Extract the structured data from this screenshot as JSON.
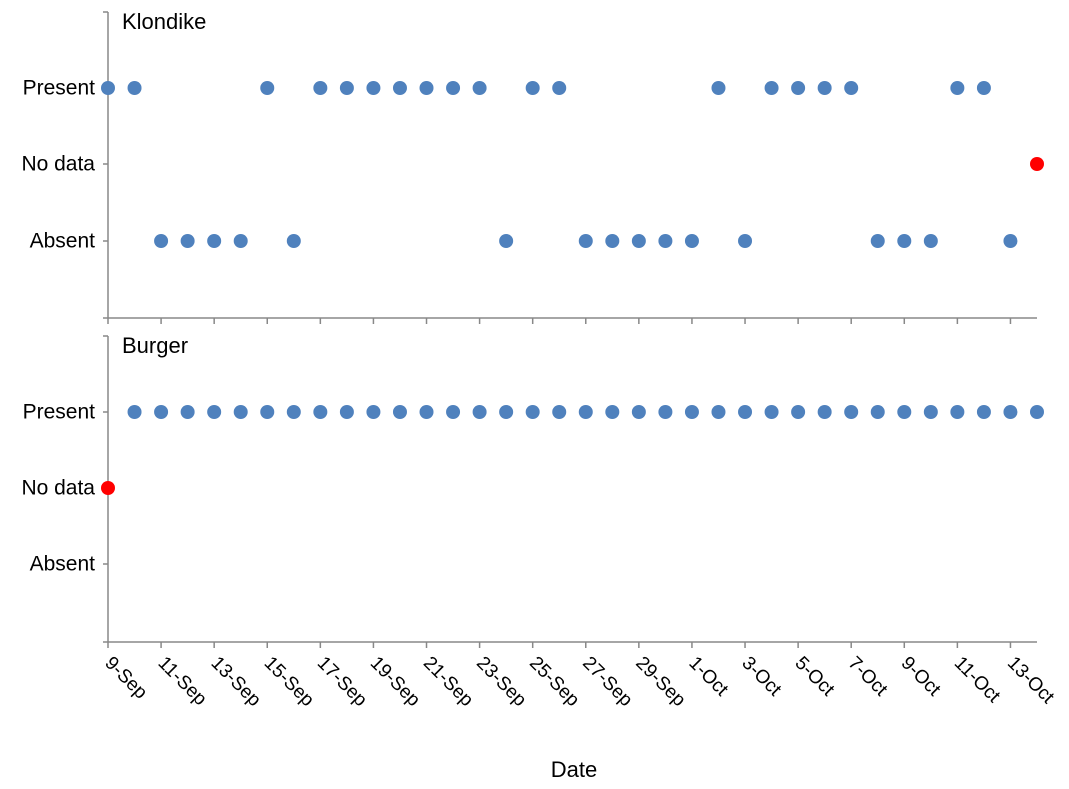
{
  "chart_data": {
    "type": "scatter",
    "xlabel": "Date",
    "x_ticks": [
      "9-Sep",
      "11-Sep",
      "13-Sep",
      "15-Sep",
      "17-Sep",
      "19-Sep",
      "21-Sep",
      "23-Sep",
      "25-Sep",
      "27-Sep",
      "29-Sep",
      "1-Oct",
      "3-Oct",
      "5-Oct",
      "7-Oct",
      "9-Oct",
      "11-Oct",
      "13-Oct"
    ],
    "x_range": [
      "2023-09-09",
      "2023-10-14"
    ],
    "y_categories": [
      "Present",
      "No data",
      "Absent"
    ],
    "colors": {
      "observed": "#4F81BD",
      "no_data": "#FF0000",
      "axis": "#888888"
    },
    "panels": [
      {
        "title": "Klondike",
        "points": [
          {
            "x": "2023-09-09",
            "y": "Present"
          },
          {
            "x": "2023-09-10",
            "y": "Present"
          },
          {
            "x": "2023-09-11",
            "y": "Absent"
          },
          {
            "x": "2023-09-12",
            "y": "Absent"
          },
          {
            "x": "2023-09-13",
            "y": "Absent"
          },
          {
            "x": "2023-09-14",
            "y": "Absent"
          },
          {
            "x": "2023-09-15",
            "y": "Present"
          },
          {
            "x": "2023-09-16",
            "y": "Absent"
          },
          {
            "x": "2023-09-17",
            "y": "Present"
          },
          {
            "x": "2023-09-18",
            "y": "Present"
          },
          {
            "x": "2023-09-19",
            "y": "Present"
          },
          {
            "x": "2023-09-20",
            "y": "Present"
          },
          {
            "x": "2023-09-21",
            "y": "Present"
          },
          {
            "x": "2023-09-22",
            "y": "Present"
          },
          {
            "x": "2023-09-23",
            "y": "Present"
          },
          {
            "x": "2023-09-24",
            "y": "Absent"
          },
          {
            "x": "2023-09-25",
            "y": "Present"
          },
          {
            "x": "2023-09-26",
            "y": "Present"
          },
          {
            "x": "2023-09-27",
            "y": "Absent"
          },
          {
            "x": "2023-09-28",
            "y": "Absent"
          },
          {
            "x": "2023-09-29",
            "y": "Absent"
          },
          {
            "x": "2023-09-30",
            "y": "Absent"
          },
          {
            "x": "2023-10-01",
            "y": "Absent"
          },
          {
            "x": "2023-10-02",
            "y": "Present"
          },
          {
            "x": "2023-10-03",
            "y": "Absent"
          },
          {
            "x": "2023-10-04",
            "y": "Present"
          },
          {
            "x": "2023-10-05",
            "y": "Present"
          },
          {
            "x": "2023-10-06",
            "y": "Present"
          },
          {
            "x": "2023-10-07",
            "y": "Present"
          },
          {
            "x": "2023-10-08",
            "y": "Absent"
          },
          {
            "x": "2023-10-09",
            "y": "Absent"
          },
          {
            "x": "2023-10-10",
            "y": "Absent"
          },
          {
            "x": "2023-10-11",
            "y": "Present"
          },
          {
            "x": "2023-10-12",
            "y": "Present"
          },
          {
            "x": "2023-10-13",
            "y": "Absent"
          },
          {
            "x": "2023-10-14",
            "y": "No data"
          }
        ]
      },
      {
        "title": "Burger",
        "points": [
          {
            "x": "2023-09-09",
            "y": "No data"
          },
          {
            "x": "2023-09-10",
            "y": "Present"
          },
          {
            "x": "2023-09-11",
            "y": "Present"
          },
          {
            "x": "2023-09-12",
            "y": "Present"
          },
          {
            "x": "2023-09-13",
            "y": "Present"
          },
          {
            "x": "2023-09-14",
            "y": "Present"
          },
          {
            "x": "2023-09-15",
            "y": "Present"
          },
          {
            "x": "2023-09-16",
            "y": "Present"
          },
          {
            "x": "2023-09-17",
            "y": "Present"
          },
          {
            "x": "2023-09-18",
            "y": "Present"
          },
          {
            "x": "2023-09-19",
            "y": "Present"
          },
          {
            "x": "2023-09-20",
            "y": "Present"
          },
          {
            "x": "2023-09-21",
            "y": "Present"
          },
          {
            "x": "2023-09-22",
            "y": "Present"
          },
          {
            "x": "2023-09-23",
            "y": "Present"
          },
          {
            "x": "2023-09-24",
            "y": "Present"
          },
          {
            "x": "2023-09-25",
            "y": "Present"
          },
          {
            "x": "2023-09-26",
            "y": "Present"
          },
          {
            "x": "2023-09-27",
            "y": "Present"
          },
          {
            "x": "2023-09-28",
            "y": "Present"
          },
          {
            "x": "2023-09-29",
            "y": "Present"
          },
          {
            "x": "2023-09-30",
            "y": "Present"
          },
          {
            "x": "2023-10-01",
            "y": "Present"
          },
          {
            "x": "2023-10-02",
            "y": "Present"
          },
          {
            "x": "2023-10-03",
            "y": "Present"
          },
          {
            "x": "2023-10-04",
            "y": "Present"
          },
          {
            "x": "2023-10-05",
            "y": "Present"
          },
          {
            "x": "2023-10-06",
            "y": "Present"
          },
          {
            "x": "2023-10-07",
            "y": "Present"
          },
          {
            "x": "2023-10-08",
            "y": "Present"
          },
          {
            "x": "2023-10-09",
            "y": "Present"
          },
          {
            "x": "2023-10-10",
            "y": "Present"
          },
          {
            "x": "2023-10-11",
            "y": "Present"
          },
          {
            "x": "2023-10-12",
            "y": "Present"
          },
          {
            "x": "2023-10-13",
            "y": "Present"
          },
          {
            "x": "2023-10-14",
            "y": "Present"
          }
        ]
      }
    ]
  }
}
